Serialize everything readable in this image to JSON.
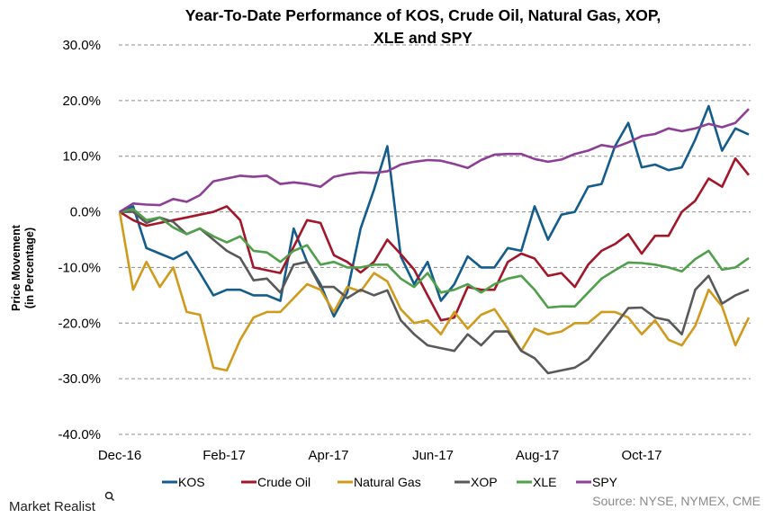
{
  "chart_data": {
    "type": "line",
    "title_lines": [
      "Year-To-Date Performance of KOS, Crude Oil, Natural Gas, XOP,",
      "XLE and SPY"
    ],
    "ylabel_lines": [
      "Price Movement",
      "(in Percentage)"
    ],
    "xlabel": "",
    "ylim": [
      -40,
      30
    ],
    "yticks": [
      "30.0%",
      "20.0%",
      "10.0%",
      "0.0%",
      "-10.0%",
      "-20.0%",
      "-30.0%",
      "-40.0%"
    ],
    "ytick_values": [
      30,
      20,
      10,
      0,
      -10,
      -20,
      -30,
      -40
    ],
    "xticks": [
      "Dec-16",
      "Feb-17",
      "Apr-17",
      "Jun-17",
      "Aug-17",
      "Oct-17"
    ],
    "grid": "horizontal dashed",
    "legend": "bottom",
    "x": [
      "2016-12-30",
      "2017-01-06",
      "2017-01-13",
      "2017-01-20",
      "2017-01-27",
      "2017-02-03",
      "2017-02-10",
      "2017-02-17",
      "2017-02-24",
      "2017-03-03",
      "2017-03-10",
      "2017-03-17",
      "2017-03-24",
      "2017-03-31",
      "2017-04-07",
      "2017-04-14",
      "2017-04-21",
      "2017-04-28",
      "2017-05-05",
      "2017-05-12",
      "2017-05-19",
      "2017-05-26",
      "2017-06-02",
      "2017-06-09",
      "2017-06-16",
      "2017-06-23",
      "2017-06-30",
      "2017-07-07",
      "2017-07-14",
      "2017-07-21",
      "2017-07-28",
      "2017-08-04",
      "2017-08-11",
      "2017-08-18",
      "2017-08-25",
      "2017-09-01",
      "2017-09-08",
      "2017-09-15",
      "2017-09-22",
      "2017-09-29",
      "2017-10-06",
      "2017-10-13",
      "2017-10-20",
      "2017-10-27",
      "2017-11-03",
      "2017-11-10",
      "2017-11-17",
      "2017-11-24"
    ],
    "series": [
      {
        "name": "KOS",
        "color": "#135c8c",
        "values": [
          0,
          1,
          -6.5,
          -7.5,
          -8.5,
          -7.2,
          -11,
          -15,
          -14,
          -14,
          -15,
          -15,
          -16,
          -3,
          -9,
          -13,
          -18.8,
          -14.5,
          -3,
          4,
          11.8,
          -8,
          -13,
          -9,
          -16,
          -13,
          -8,
          -10,
          -10,
          -6.5,
          -7,
          1,
          -5,
          -0.5,
          0,
          4.5,
          5,
          11.8,
          16,
          8,
          8.5,
          7.5,
          8,
          13,
          19,
          11,
          15,
          13.9
        ]
      },
      {
        "name": "Crude Oil",
        "color": "#a3162a",
        "values": [
          0,
          -1.5,
          -2.5,
          -2,
          -1.5,
          -1,
          -0.5,
          0,
          1,
          -1.5,
          -10,
          -10.5,
          -11,
          -6.3,
          -1.5,
          -2,
          -7.8,
          -9,
          -10.9,
          -9,
          -5,
          -7.6,
          -10.4,
          -15,
          -19.5,
          -19,
          -13.5,
          -14,
          -14,
          -9,
          -7.5,
          -8.4,
          -11.5,
          -11,
          -13.5,
          -9.5,
          -7,
          -5.8,
          -4,
          -7.5,
          -4.3,
          -4.3,
          0,
          2,
          6,
          4.5,
          9.6,
          6.6
        ]
      },
      {
        "name": "Natural Gas",
        "color": "#d09b1c",
        "values": [
          0,
          -14,
          -9,
          -13.5,
          -10,
          -18,
          -18.5,
          -28,
          -28.5,
          -23,
          -19,
          -18,
          -18,
          -15.5,
          -13,
          -14,
          -18,
          -13.5,
          -14.3,
          -11,
          -12.5,
          -17.5,
          -20,
          -19.5,
          -22,
          -18,
          -21,
          -18.5,
          -17.5,
          -21,
          -25,
          -21,
          -22,
          -21.5,
          -20,
          -20,
          -18,
          -18,
          -19,
          -22,
          -19.5,
          -23,
          -24,
          -20.5,
          -14,
          -17,
          -24,
          -19
        ]
      },
      {
        "name": "XOP",
        "color": "#595959",
        "values": [
          0,
          0,
          -2,
          -1,
          -1.8,
          -4,
          -3,
          -5,
          -7,
          -8.3,
          -12.3,
          -12,
          -14.5,
          -9.5,
          -9,
          -13.5,
          -13.5,
          -15.5,
          -14,
          -15,
          -14.1,
          -19.5,
          -22,
          -24,
          -24.5,
          -25,
          -22,
          -24,
          -21.5,
          -21.5,
          -25,
          -26.3,
          -29,
          -28.5,
          -28,
          -26.5,
          -23.5,
          -20.4,
          -17.3,
          -17.2,
          -19,
          -19.5,
          -22,
          -14,
          -11.5,
          -16.5,
          -15,
          -14
        ]
      },
      {
        "name": "XLE",
        "color": "#4f9f4b",
        "values": [
          0,
          0.5,
          -1.5,
          -1,
          -2.8,
          -4,
          -3,
          -4.4,
          -5.5,
          -4.4,
          -7,
          -7.3,
          -9,
          -7,
          -6,
          -9.5,
          -9,
          -10,
          -10,
          -9.5,
          -9.5,
          -12,
          -13.5,
          -11,
          -14.5,
          -14,
          -13,
          -14.5,
          -13,
          -12,
          -11.5,
          -14,
          -17.2,
          -17,
          -17,
          -14.5,
          -12,
          -10.5,
          -9.1,
          -9.2,
          -9.5,
          -10,
          -10.7,
          -8.5,
          -7,
          -10.4,
          -10,
          -8.3
        ]
      },
      {
        "name": "SPY",
        "color": "#8c3f94",
        "values": [
          0,
          1.5,
          1.3,
          1.2,
          2.3,
          1.8,
          3,
          5.5,
          6,
          6.5,
          6.3,
          6.5,
          5,
          5.3,
          5,
          4.5,
          6.3,
          6.8,
          7.1,
          7,
          7.3,
          8.5,
          9,
          9.3,
          9.2,
          8.6,
          7.9,
          9.3,
          10.3,
          10.4,
          10.4,
          9.5,
          9,
          9.4,
          10.4,
          11,
          12,
          11.6,
          12.5,
          13.6,
          14,
          15,
          14.5,
          15,
          15.8,
          15.2,
          16,
          18.5
        ]
      }
    ]
  },
  "footer": {
    "brand": "Market Realist",
    "source": "Source: NYSE, NYMEX, CME"
  }
}
